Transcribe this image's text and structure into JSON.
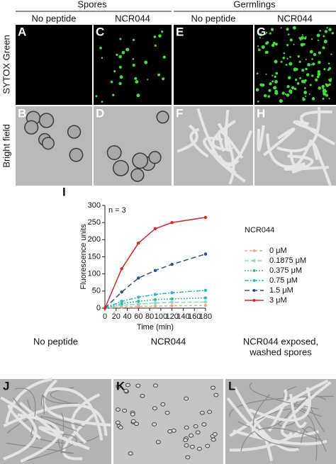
{
  "header": {
    "groups": [
      "Spores",
      "Germlings"
    ],
    "conditions": [
      "No peptide",
      "NCR044",
      "No peptide",
      "NCR044"
    ]
  },
  "row_labels": [
    "SYTOX Green",
    "Bright field"
  ],
  "panel_letters": [
    "A",
    "C",
    "E",
    "G",
    "B",
    "D",
    "F",
    "H"
  ],
  "chart_data": {
    "type": "line",
    "panel_letter": "I",
    "annotation": "n = 3",
    "x_label": "Time (min)",
    "y_label": "Fluorescence units",
    "legend_title": "NCR044",
    "x": [
      0,
      30,
      60,
      90,
      120,
      180
    ],
    "xlim": [
      0,
      180
    ],
    "ylim": [
      0,
      300
    ],
    "xticks": [
      0,
      20,
      40,
      60,
      80,
      100,
      120,
      140,
      160,
      180
    ],
    "yticks": [
      0,
      50,
      100,
      150,
      200,
      250,
      300
    ],
    "series": [
      {
        "name": "0 μM",
        "color": "#f4a582",
        "dash": "4 3",
        "values": [
          0,
          3,
          5,
          6,
          7,
          8
        ]
      },
      {
        "name": "0.1875 μM",
        "color": "#80d8d0",
        "dash": "6 3",
        "values": [
          0,
          8,
          12,
          15,
          17,
          18
        ]
      },
      {
        "name": "0.375 μM",
        "color": "#3cb88c",
        "dash": "2 2",
        "values": [
          0,
          13,
          20,
          25,
          27,
          30
        ]
      },
      {
        "name": "0.75 μM",
        "color": "#27b7c9",
        "dash": "6 2 2 2",
        "values": [
          0,
          20,
          32,
          40,
          45,
          52
        ]
      },
      {
        "name": "1.5 μM",
        "color": "#2b4f8f",
        "dash": "7 4",
        "values": [
          0,
          47,
          88,
          110,
          128,
          158
        ]
      },
      {
        "name": "3 μM",
        "color": "#e02424",
        "dash": "",
        "values": [
          0,
          115,
          190,
          232,
          250,
          265
        ]
      }
    ]
  },
  "bottom_panels": [
    {
      "letter": "J",
      "caption": [
        "No peptide"
      ]
    },
    {
      "letter": "K",
      "caption": [
        "NCR044"
      ]
    },
    {
      "letter": "L",
      "caption": [
        "NCR044 exposed,",
        "washed spores"
      ]
    }
  ]
}
